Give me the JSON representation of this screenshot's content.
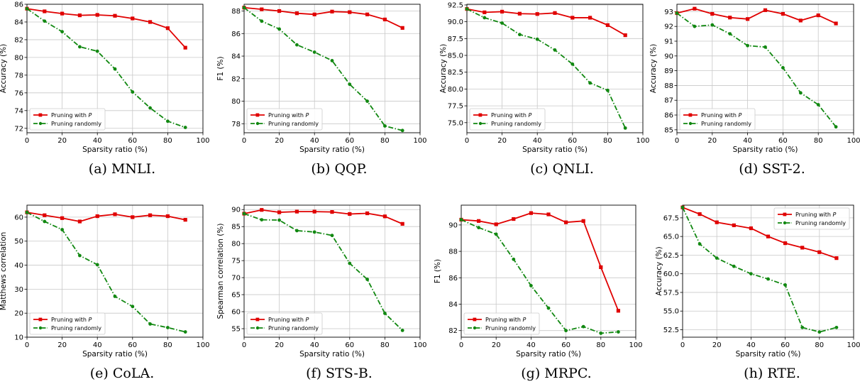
{
  "colors": {
    "pruning_p": "#e00000",
    "random": "#118811",
    "grid": "#c8c8c8"
  },
  "chart_data": [
    {
      "type": "line",
      "caption": "(a) MNLI.",
      "xlabel": "Sparsity ratio (%)",
      "ylabel": "Accuracy (%)",
      "xlim": [
        0,
        100
      ],
      "ylim": [
        71.5,
        86
      ],
      "xticks": [
        0,
        20,
        40,
        60,
        80,
        100
      ],
      "yticks": [
        72,
        74,
        76,
        78,
        80,
        82,
        84,
        86
      ],
      "ytick_labels": [
        "72",
        "74",
        "76",
        "78",
        "80",
        "82",
        "84",
        "86"
      ],
      "legend_position": "lower-left",
      "x": [
        0,
        10,
        20,
        30,
        40,
        50,
        60,
        70,
        80,
        90
      ],
      "series": [
        {
          "name": "Pruning with P",
          "name_prefix": "Pruning with ",
          "name_symbol": "P",
          "style": "solid",
          "values": [
            85.5,
            85.2,
            84.95,
            84.75,
            84.8,
            84.7,
            84.4,
            84.0,
            83.3,
            81.1
          ]
        },
        {
          "name": "Pruning randomly",
          "style": "dashdot",
          "values": [
            85.5,
            84.1,
            82.9,
            81.2,
            80.7,
            78.7,
            76.1,
            74.3,
            72.8,
            72.1
          ]
        }
      ]
    },
    {
      "type": "line",
      "caption": "(b) QQP.",
      "xlabel": "Sparsity ratio (%)",
      "ylabel": "F1 (%)",
      "xlim": [
        0,
        100
      ],
      "ylim": [
        77.2,
        88.6
      ],
      "xticks": [
        0,
        20,
        40,
        60,
        80,
        100
      ],
      "yticks": [
        78,
        80,
        82,
        84,
        86,
        88
      ],
      "ytick_labels": [
        "78",
        "80",
        "82",
        "84",
        "86",
        "88"
      ],
      "legend_position": "lower-left",
      "x": [
        0,
        10,
        20,
        30,
        40,
        50,
        60,
        70,
        80,
        90
      ],
      "series": [
        {
          "name": "Pruning with P",
          "name_prefix": "Pruning with ",
          "name_symbol": "P",
          "style": "solid",
          "values": [
            88.3,
            88.15,
            88.0,
            87.8,
            87.7,
            87.95,
            87.9,
            87.7,
            87.25,
            86.5
          ]
        },
        {
          "name": "Pruning randomly",
          "style": "dashdot",
          "values": [
            88.3,
            87.1,
            86.4,
            85.0,
            84.35,
            83.6,
            81.5,
            80.0,
            77.8,
            77.4
          ]
        }
      ]
    },
    {
      "type": "line",
      "caption": "(c) QNLI.",
      "xlabel": "Sparsity ratio (%)",
      "ylabel": "Accuracy (%)",
      "xlim": [
        0,
        100
      ],
      "ylim": [
        73.5,
        92.6
      ],
      "xticks": [
        0,
        20,
        40,
        60,
        80,
        100
      ],
      "yticks": [
        75,
        77.5,
        80,
        82.5,
        85,
        87.5,
        90,
        92.5
      ],
      "ytick_labels": [
        "75.0",
        "77.5",
        "80.0",
        "82.5",
        "85.0",
        "87.5",
        "90.0",
        "92.5"
      ],
      "legend_position": "lower-left",
      "x": [
        0,
        10,
        20,
        30,
        40,
        50,
        60,
        70,
        80,
        90
      ],
      "series": [
        {
          "name": "Pruning with P",
          "name_prefix": "Pruning with ",
          "name_symbol": "P",
          "style": "solid",
          "values": [
            91.9,
            91.4,
            91.5,
            91.2,
            91.15,
            91.3,
            90.6,
            90.6,
            89.5,
            88.0
          ]
        },
        {
          "name": "Pruning randomly",
          "style": "dashdot",
          "values": [
            91.9,
            90.6,
            89.8,
            88.1,
            87.4,
            85.8,
            83.7,
            80.9,
            79.8,
            74.2
          ]
        }
      ]
    },
    {
      "type": "line",
      "caption": "(d) SST-2.",
      "xlabel": "Sparsity ratio (%)",
      "ylabel": "Accuracy (%)",
      "xlim": [
        0,
        100
      ],
      "ylim": [
        84.8,
        93.5
      ],
      "xticks": [
        0,
        20,
        40,
        60,
        80,
        100
      ],
      "yticks": [
        85,
        86,
        87,
        88,
        89,
        90,
        91,
        92,
        93
      ],
      "ytick_labels": [
        "85",
        "86",
        "87",
        "88",
        "89",
        "90",
        "91",
        "92",
        "93"
      ],
      "legend_position": "lower-left",
      "x": [
        0,
        10,
        20,
        30,
        40,
        50,
        60,
        70,
        80,
        90
      ],
      "series": [
        {
          "name": "Pruning with P",
          "name_prefix": "Pruning with ",
          "name_symbol": "P",
          "style": "solid",
          "values": [
            92.9,
            93.2,
            92.85,
            92.6,
            92.5,
            93.1,
            92.85,
            92.4,
            92.75,
            92.2
          ]
        },
        {
          "name": "Pruning randomly",
          "style": "dashdot",
          "values": [
            92.9,
            92.0,
            92.1,
            91.5,
            90.7,
            90.6,
            89.2,
            87.5,
            86.7,
            85.2
          ]
        }
      ]
    },
    {
      "type": "line",
      "caption": "(e) CoLA.",
      "xlabel": "Sparsity ratio (%)",
      "ylabel": "Matthews correlation",
      "xlim": [
        0,
        100
      ],
      "ylim": [
        10,
        65
      ],
      "xticks": [
        0,
        20,
        40,
        60,
        80,
        100
      ],
      "yticks": [
        10,
        20,
        30,
        40,
        50,
        60
      ],
      "ytick_labels": [
        "10",
        "20",
        "30",
        "40",
        "50",
        "60"
      ],
      "legend_position": "lower-left",
      "x": [
        0,
        10,
        20,
        30,
        40,
        50,
        60,
        70,
        80,
        90
      ],
      "series": [
        {
          "name": "Pruning with P",
          "name_prefix": "Pruning with ",
          "name_symbol": "P",
          "style": "solid",
          "values": [
            62.0,
            60.8,
            59.6,
            58.2,
            60.4,
            61.2,
            60.0,
            60.8,
            60.4,
            58.9
          ]
        },
        {
          "name": "Pruning randomly",
          "style": "dashdot",
          "values": [
            62.0,
            58.2,
            54.8,
            44.0,
            40.2,
            27.0,
            22.8,
            15.5,
            14.0,
            12.2
          ]
        }
      ]
    },
    {
      "type": "line",
      "caption": "(f) STS-B.",
      "xlabel": "Sparsity ratio (%)",
      "ylabel": "Spearman correlation (%)",
      "xlim": [
        0,
        100
      ],
      "ylim": [
        52.5,
        91.3
      ],
      "xticks": [
        0,
        20,
        40,
        60,
        80,
        100
      ],
      "yticks": [
        55,
        60,
        65,
        70,
        75,
        80,
        85,
        90
      ],
      "ytick_labels": [
        "55",
        "60",
        "65",
        "70",
        "75",
        "80",
        "85",
        "90"
      ],
      "legend_position": "lower-left",
      "x": [
        0,
        10,
        20,
        30,
        40,
        50,
        60,
        70,
        80,
        90
      ],
      "series": [
        {
          "name": "Pruning with P",
          "name_prefix": "Pruning with ",
          "name_symbol": "P",
          "style": "solid",
          "values": [
            88.8,
            89.9,
            89.2,
            89.4,
            89.4,
            89.3,
            88.7,
            88.9,
            88.0,
            85.8
          ]
        },
        {
          "name": "Pruning randomly",
          "style": "dashdot",
          "values": [
            88.8,
            87.0,
            86.9,
            83.8,
            83.4,
            82.4,
            74.2,
            69.5,
            59.5,
            54.5
          ]
        }
      ]
    },
    {
      "type": "line",
      "caption": "(g) MRPC.",
      "xlabel": "Sparsity ratio (%)",
      "ylabel": "F1 (%)",
      "xlim": [
        0,
        100
      ],
      "ylim": [
        81.5,
        91.5
      ],
      "xticks": [
        0,
        20,
        40,
        60,
        80,
        100
      ],
      "yticks": [
        82,
        84,
        86,
        88,
        90
      ],
      "ytick_labels": [
        "82",
        "84",
        "86",
        "88",
        "90"
      ],
      "legend_position": "lower-left",
      "x": [
        0,
        10,
        20,
        30,
        40,
        50,
        60,
        70,
        80,
        90
      ],
      "series": [
        {
          "name": "Pruning with P",
          "name_prefix": "Pruning with ",
          "name_symbol": "P",
          "style": "solid",
          "values": [
            90.4,
            90.3,
            90.05,
            90.45,
            90.9,
            90.8,
            90.2,
            90.3,
            86.8,
            83.5
          ]
        },
        {
          "name": "Pruning randomly",
          "style": "dashdot",
          "values": [
            90.4,
            89.8,
            89.3,
            87.4,
            85.4,
            83.7,
            82.0,
            82.3,
            81.8,
            81.9
          ]
        }
      ]
    },
    {
      "type": "line",
      "caption": "(h) RTE.",
      "xlabel": "Sparsity ratio (%)",
      "ylabel": "Accuracy (%)",
      "xlim": [
        0,
        100
      ],
      "ylim": [
        51.5,
        69.2
      ],
      "xticks": [
        0,
        20,
        40,
        60,
        80,
        100
      ],
      "yticks": [
        52.5,
        55,
        57.5,
        60,
        62.5,
        65,
        67.5
      ],
      "ytick_labels": [
        "52.5",
        "55.0",
        "57.5",
        "60.0",
        "62.5",
        "65.0",
        "67.5"
      ],
      "legend_position": "upper-right",
      "x": [
        0,
        10,
        20,
        30,
        40,
        50,
        60,
        70,
        80,
        90
      ],
      "series": [
        {
          "name": "Pruning with P",
          "name_prefix": "Pruning with ",
          "name_symbol": "P",
          "style": "solid",
          "values": [
            68.9,
            68.0,
            66.9,
            66.5,
            66.1,
            65.0,
            64.1,
            63.5,
            62.9,
            62.1
          ]
        },
        {
          "name": "Pruning randomly",
          "style": "dashdot",
          "values": [
            68.9,
            64.0,
            62.1,
            61.0,
            60.0,
            59.3,
            58.5,
            52.8,
            52.2,
            52.8
          ]
        }
      ]
    }
  ]
}
